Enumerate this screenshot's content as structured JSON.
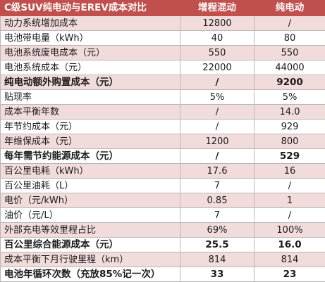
{
  "table": {
    "title": "C级SUV纯电动与EREV成本对比",
    "col_erev": "增程混动",
    "col_bev": "纯电动",
    "rows": [
      {
        "label": "动力系统增加成本",
        "erev": "12800",
        "bev": "/",
        "bold": false
      },
      {
        "label": "电池带电量（kWh）",
        "erev": "40",
        "bev": "80",
        "bold": false
      },
      {
        "label": "电池系统废电成本（元）",
        "erev": "550",
        "bev": "550",
        "bold": false
      },
      {
        "label": "电池系统成本（元）",
        "erev": "22000",
        "bev": "44000",
        "bold": false
      },
      {
        "label": "纯电动额外购置成本（元）",
        "erev": "/",
        "bev": "9200",
        "bold": true
      },
      {
        "label": "贴现率",
        "erev": "5%",
        "bev": "5%",
        "bold": false
      },
      {
        "label": "成本平衡年数",
        "erev": "/",
        "bev": "14.0",
        "bold": false
      },
      {
        "label": "年节约成本（元）",
        "erev": "/",
        "bev": "929",
        "bold": false
      },
      {
        "label": "年维保成本（元）",
        "erev": "1200",
        "bev": "800",
        "bold": false
      },
      {
        "label": "每年需节约能源成本（元）",
        "erev": "/",
        "bev": "529",
        "bold": true
      },
      {
        "label": "百公里电耗（kWh）",
        "erev": "17.6",
        "bev": "16",
        "bold": false
      },
      {
        "label": "百公里油耗（L）",
        "erev": "7",
        "bev": "/",
        "bold": false
      },
      {
        "label": "电价（元/kWh）",
        "erev": "0.85",
        "bev": "1",
        "bold": false
      },
      {
        "label": "油价（元/L）",
        "erev": "7",
        "bev": "/",
        "bold": false
      },
      {
        "label": "外部充电等效里程占比",
        "erev": "69%",
        "bev": "100%",
        "bold": false
      },
      {
        "label": "百公里综合能源成本（元）",
        "erev": "25.5",
        "bev": "16.0",
        "bold": true
      },
      {
        "label": "成本平衡下月行驶里程（km）",
        "erev": "814",
        "bev": "814",
        "bold": false
      },
      {
        "label": "电池年循环次数（充放85%记一次）",
        "erev": "33",
        "bev": "23",
        "bold": true
      }
    ]
  }
}
